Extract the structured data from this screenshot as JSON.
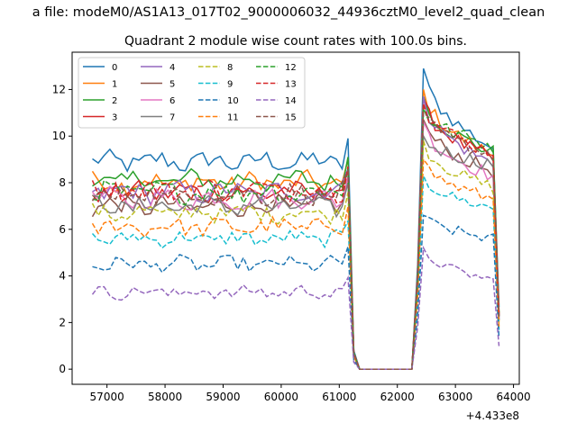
{
  "chart_data": {
    "type": "line",
    "suptitle": "a file: modeM0/AS1A13_017T02_9000006032_44936cztM0_level2_quad_clean",
    "title": "Quadrant 2 module wise count rates with 100.0s bins.",
    "xlabel": "",
    "ylabel": "",
    "x_offset_label": "+4.433e8",
    "xlim": [
      56400,
      64100
    ],
    "ylim": [
      -0.65,
      13.6
    ],
    "x_ticks": [
      57000,
      58000,
      59000,
      60000,
      61000,
      62000,
      63000,
      64000
    ],
    "x_tick_labels": [
      "57000",
      "58000",
      "59000",
      "60000",
      "61000",
      "62000",
      "63000",
      "64000"
    ],
    "y_ticks": [
      0,
      2,
      4,
      6,
      8,
      10,
      12
    ],
    "y_tick_labels": [
      "0",
      "2",
      "4",
      "6",
      "8",
      "10",
      "12"
    ],
    "grid": false,
    "legend_position": "upper-left",
    "legend_columns": 4,
    "time_axis": {
      "start": 56750,
      "step": 100,
      "n_before_gap": 45,
      "gap_end_time": 62250,
      "end_time": 63750
    },
    "series": [
      {
        "name": "0",
        "color": "#1f77b4",
        "dash": false,
        "base": 8.9,
        "peak": 12.9,
        "tail": 9.5,
        "amp": 0.4
      },
      {
        "name": "1",
        "color": "#ff7f0e",
        "dash": false,
        "base": 8.0,
        "peak": 12.0,
        "tail": 9.2,
        "amp": 0.4
      },
      {
        "name": "2",
        "color": "#2ca02c",
        "dash": false,
        "base": 8.1,
        "peak": 11.7,
        "tail": 9.3,
        "amp": 0.4
      },
      {
        "name": "3",
        "color": "#d62728",
        "dash": false,
        "base": 7.6,
        "peak": 11.6,
        "tail": 9.0,
        "amp": 0.4
      },
      {
        "name": "4",
        "color": "#9467bd",
        "dash": false,
        "base": 7.6,
        "peak": 11.7,
        "tail": 8.8,
        "amp": 0.4
      },
      {
        "name": "5",
        "color": "#8c564b",
        "dash": false,
        "base": 7.0,
        "peak": 10.7,
        "tail": 8.5,
        "amp": 0.4
      },
      {
        "name": "6",
        "color": "#e377c2",
        "dash": false,
        "base": 7.3,
        "peak": 10.6,
        "tail": 8.3,
        "amp": 0.4
      },
      {
        "name": "7",
        "color": "#7f7f7f",
        "dash": false,
        "base": 7.0,
        "peak": 10.0,
        "tail": 8.8,
        "amp": 0.4
      },
      {
        "name": "8",
        "color": "#bcbd22",
        "dash": true,
        "base": 6.7,
        "peak": 9.8,
        "tail": 7.8,
        "amp": 0.35
      },
      {
        "name": "9",
        "color": "#17becf",
        "dash": true,
        "base": 5.6,
        "peak": 8.3,
        "tail": 6.9,
        "amp": 0.3
      },
      {
        "name": "10",
        "color": "#1f77b4",
        "dash": true,
        "base": 4.5,
        "peak": 6.6,
        "tail": 5.6,
        "amp": 0.3
      },
      {
        "name": "11",
        "color": "#ff7f0e",
        "dash": true,
        "base": 6.1,
        "peak": 9.0,
        "tail": 7.3,
        "amp": 0.35
      },
      {
        "name": "12",
        "color": "#2ca02c",
        "dash": true,
        "base": 7.6,
        "peak": 11.2,
        "tail": 9.6,
        "amp": 0.4
      },
      {
        "name": "13",
        "color": "#d62728",
        "dash": true,
        "base": 7.7,
        "peak": 11.4,
        "tail": 9.3,
        "amp": 0.4
      },
      {
        "name": "14",
        "color": "#9467bd",
        "dash": true,
        "base": 3.3,
        "peak": 5.2,
        "tail": 3.8,
        "amp": 0.25
      },
      {
        "name": "15",
        "color": "#8c564b",
        "dash": true,
        "base": 7.5,
        "peak": 11.0,
        "tail": 9.2,
        "amp": 0.4
      }
    ]
  }
}
